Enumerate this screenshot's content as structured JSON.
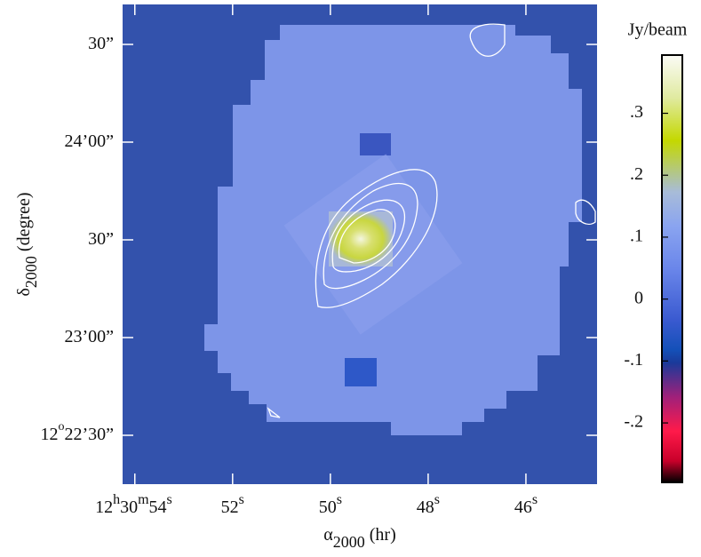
{
  "chart_data": {
    "type": "image",
    "xlabel": [
      "α",
      "2000",
      " (hr)"
    ],
    "ylabel": [
      "δ",
      "2000",
      " (degree)"
    ],
    "xlim": [
      54.25,
      44.545
    ],
    "xticks": [
      {
        "value": 54,
        "label": [
          "12",
          "h",
          "30",
          "m",
          "54",
          "s"
        ]
      },
      {
        "value": 52,
        "label": [
          "52",
          "s"
        ]
      },
      {
        "value": 50,
        "label": [
          "50",
          "s"
        ]
      },
      {
        "value": 48,
        "label": [
          "48",
          "s"
        ]
      },
      {
        "value": 46,
        "label": [
          "46",
          "s"
        ]
      }
    ],
    "ylim": [
      15,
      162.27
    ],
    "yticks": [
      {
        "value": 30,
        "label": [
          "12",
          "o",
          "22’30”"
        ]
      },
      {
        "value": 60,
        "label": [
          "23’00”"
        ]
      },
      {
        "value": 90,
        "label": [
          "30”"
        ]
      },
      {
        "value": 120,
        "label": [
          "24’00”"
        ]
      },
      {
        "value": 150,
        "label": [
          "30”"
        ]
      }
    ],
    "colorbar": {
      "label": "Jy/beam",
      "lim": [
        -0.296,
        0.394
      ],
      "ticks": [
        {
          "value": -0.2,
          "label": "-.2"
        },
        {
          "value": -0.1,
          "label": "-.1"
        },
        0,
        {
          "value": 0.1,
          "label": ".1"
        },
        {
          "value": 0.2,
          "label": ".2"
        },
        {
          "value": 0.3,
          "label": ".3"
        }
      ]
    }
  }
}
